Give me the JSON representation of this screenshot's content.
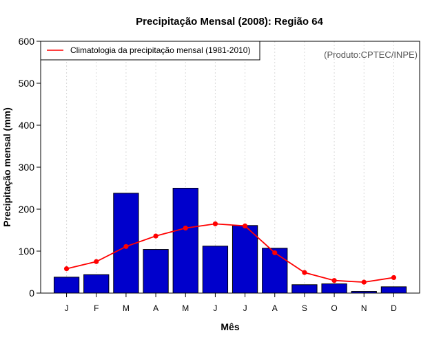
{
  "chart_data": {
    "type": "bar",
    "title": "Precipitação Mensal (2008): Região 64",
    "xlabel": "Mês",
    "ylabel": "Precipitação mensal (mm)",
    "ylim": [
      0,
      600
    ],
    "yticks": [
      0,
      100,
      200,
      300,
      400,
      500,
      600
    ],
    "categories": [
      "J",
      "F",
      "M",
      "A",
      "M",
      "J",
      "J",
      "A",
      "S",
      "O",
      "N",
      "D"
    ],
    "grid": "vertical dotted",
    "credit": "(Produto:CPTEC/INPE)",
    "series": [
      {
        "name": "Precipitação mensal 2008",
        "type": "bar",
        "color": "#0000CC",
        "values": [
          38,
          44,
          238,
          104,
          250,
          112,
          161,
          107,
          20,
          22,
          4,
          15
        ]
      },
      {
        "name": "Climatologia da precipitação mensal (1981-2010)",
        "type": "line",
        "color": "#FF0000",
        "values": [
          58,
          75,
          111,
          136,
          155,
          165,
          160,
          96,
          49,
          30,
          26,
          37
        ]
      }
    ],
    "legend": {
      "position": "top-left",
      "entries": [
        "Climatologia da precipitação mensal (1981-2010)"
      ]
    }
  }
}
